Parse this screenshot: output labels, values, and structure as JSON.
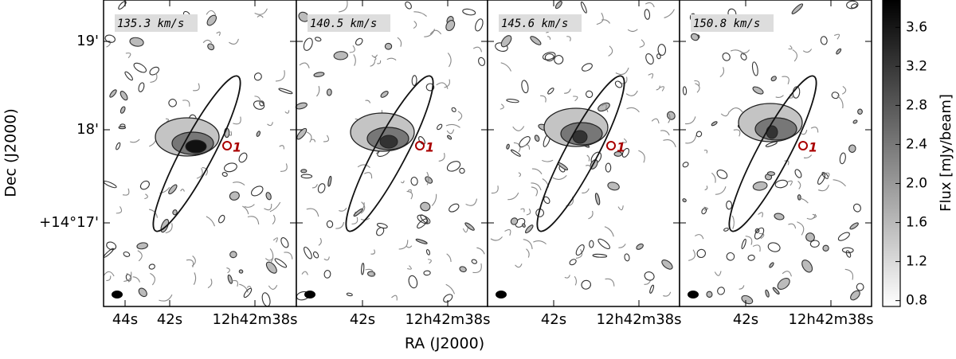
{
  "chart_data": {
    "type": "channel-map",
    "xlabel": "RA (J2000)",
    "ylabel": "Dec (J2000)",
    "yticks": [
      "19'",
      "18'",
      "+14°17'"
    ],
    "source_label": "1",
    "panels": [
      {
        "label": "135.3 km/s",
        "xticks": [
          "44s",
          "42s",
          "12h42m38s"
        ]
      },
      {
        "label": "140.5 km/s",
        "xticks": [
          "42s",
          "12h42m38s"
        ]
      },
      {
        "label": "145.6 km/s",
        "xticks": [
          "42s",
          "12h42m38s"
        ]
      },
      {
        "label": "150.8 km/s",
        "xticks": [
          "42s",
          "12h42m38s"
        ]
      }
    ],
    "colorbar": {
      "label": "Flux [mJy/beam]",
      "clim": [
        0.74,
        3.88
      ],
      "ticks": [
        0.8,
        1.2,
        1.6,
        {
          "value": 2,
          "label": "2.0"
        },
        2.4,
        2.8,
        3.2,
        3.6
      ]
    }
  }
}
